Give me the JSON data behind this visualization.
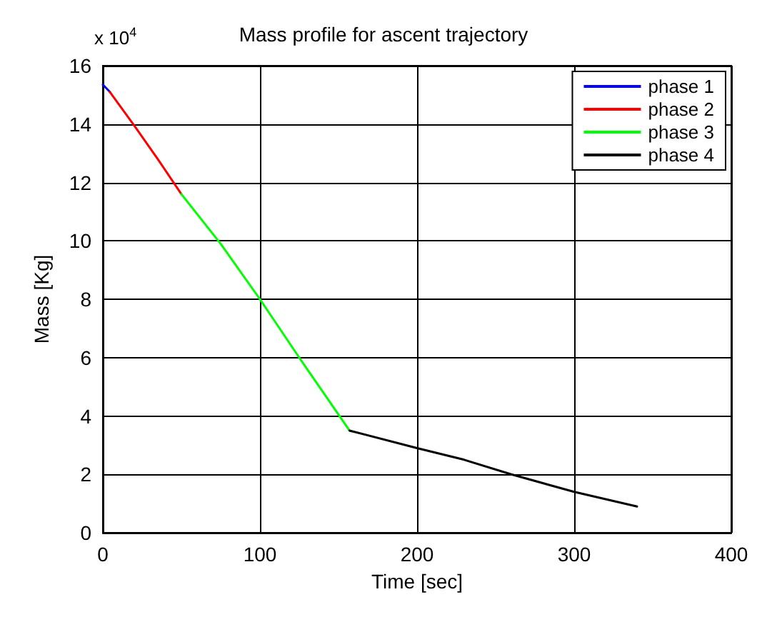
{
  "chart_data": {
    "type": "line",
    "title": "Mass profile for ascent trajectory",
    "xlabel": "Time [sec]",
    "ylabel": "Mass [Kg]",
    "annotations": [
      "x 10$^{4}$"
    ],
    "series": [
      {
        "name": "phase 1",
        "color": "#0000ff",
        "x": [
          0,
          4.5
        ],
        "values": [
          15.35,
          15.1
        ]
      },
      {
        "name": "phase 2",
        "color": "#ff0000",
        "x": [
          4.5,
          20,
          35,
          50
        ],
        "values": [
          15.1,
          13.95,
          12.8,
          11.6
        ]
      },
      {
        "name": "phase 3",
        "color": "#00ff00",
        "x": [
          50,
          75,
          100,
          125,
          157
        ],
        "values": [
          11.6,
          9.9,
          8.0,
          6.0,
          3.5
        ]
      },
      {
        "name": "phase 4",
        "color": "#000000",
        "x": [
          157,
          200,
          230,
          260,
          300,
          340
        ],
        "values": [
          3.5,
          2.9,
          2.5,
          2.0,
          1.4,
          0.9
        ]
      }
    ],
    "xlim": [
      0,
      400
    ],
    "xticks": [
      0,
      100,
      200,
      300,
      400
    ],
    "ylim": [
      0,
      16
    ],
    "yticks": [
      0,
      2,
      4,
      6,
      8,
      10,
      12,
      14,
      16
    ],
    "grid": true,
    "legend": "top right",
    "line_style": "solid",
    "marker": "none"
  }
}
